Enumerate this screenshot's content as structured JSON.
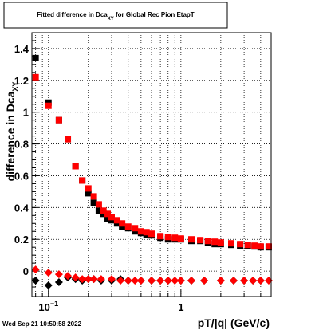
{
  "footer_timestamp": "Wed Sep 21 10:50:58 2022",
  "colors": {
    "series_red": "#ff0000",
    "series_black": "#000000",
    "background": "#ffffff"
  },
  "chart_data": {
    "type": "scatter",
    "title": "Fitted difference in Dca_XY for Global Rec Pion EtapT",
    "title_main": "Fitted difference in Dca",
    "title_sub": "XY",
    "title_tail": " for Global Rec Pion EtapT",
    "xlabel": "pT/|q| (GeV/c)",
    "ylabel_main": "difference in Dca",
    "ylabel_sub": "XY",
    "x_scale": "log",
    "xlim": [
      0.075,
      4.8
    ],
    "ylim": [
      -0.16,
      1.5
    ],
    "grid": true,
    "x_tick_labels": [
      {
        "value": 0.1,
        "label": "10",
        "exp": "−1"
      },
      {
        "value": 1,
        "label": "1",
        "exp": ""
      }
    ],
    "y_ticks": [
      {
        "value": 0,
        "label": "0"
      },
      {
        "value": 0.2,
        "label": "0.2"
      },
      {
        "value": 0.4,
        "label": "0.4"
      },
      {
        "value": 0.6,
        "label": "0.6"
      },
      {
        "value": 0.8,
        "label": "0.8"
      },
      {
        "value": 1,
        "label": "1"
      },
      {
        "value": 1.2,
        "label": "1.2"
      },
      {
        "value": 1.4,
        "label": "1.4"
      }
    ],
    "series": [
      {
        "marker": "square",
        "color": "#000000",
        "x": [
          0.08,
          0.1,
          0.12,
          0.14,
          0.16,
          0.18,
          0.2,
          0.22,
          0.24,
          0.26,
          0.28,
          0.3,
          0.33,
          0.36,
          0.4,
          0.45,
          0.5,
          0.55,
          0.6,
          0.7,
          0.8,
          0.9,
          1.0,
          1.2,
          1.4,
          1.6,
          1.8,
          2.0,
          2.4,
          2.8,
          3.2,
          3.6,
          4.0,
          4.6
        ],
        "y": [
          1.34,
          1.06,
          0.95,
          0.83,
          0.66,
          0.57,
          0.49,
          0.43,
          0.38,
          0.36,
          0.33,
          0.32,
          0.3,
          0.28,
          0.27,
          0.25,
          0.24,
          0.23,
          0.225,
          0.21,
          0.2,
          0.2,
          0.2,
          0.19,
          0.19,
          0.18,
          0.17,
          0.17,
          0.165,
          0.16,
          0.16,
          0.155,
          0.15,
          0.15
        ]
      },
      {
        "marker": "square",
        "color": "#ff0000",
        "x": [
          0.08,
          0.1,
          0.12,
          0.14,
          0.16,
          0.18,
          0.2,
          0.22,
          0.24,
          0.26,
          0.28,
          0.3,
          0.33,
          0.36,
          0.4,
          0.45,
          0.5,
          0.55,
          0.6,
          0.7,
          0.8,
          0.9,
          1.0,
          1.2,
          1.4,
          1.6,
          1.8,
          2.0,
          2.4,
          2.8,
          3.2,
          3.6,
          4.0,
          4.6
        ],
        "y": [
          1.22,
          1.04,
          0.95,
          0.83,
          0.66,
          0.57,
          0.52,
          0.47,
          0.42,
          0.38,
          0.36,
          0.34,
          0.32,
          0.3,
          0.28,
          0.27,
          0.25,
          0.245,
          0.235,
          0.22,
          0.215,
          0.21,
          0.205,
          0.2,
          0.195,
          0.19,
          0.185,
          0.18,
          0.175,
          0.17,
          0.165,
          0.16,
          0.155,
          0.155
        ]
      },
      {
        "marker": "diamond",
        "color": "#000000",
        "x": [
          0.08,
          0.1,
          0.12,
          0.14,
          0.16,
          0.18,
          0.2,
          0.22,
          0.25,
          0.3,
          0.35,
          0.4,
          0.5,
          0.6,
          0.7,
          0.8,
          1.0,
          1.2,
          1.5,
          2.0,
          2.5,
          3.0,
          3.5,
          4.0
        ],
        "y": [
          -0.06,
          -0.09,
          -0.07,
          -0.04,
          -0.05,
          -0.06,
          -0.05,
          -0.05,
          -0.06,
          -0.06,
          -0.05,
          -0.06,
          -0.06,
          -0.06,
          -0.06,
          -0.06,
          -0.06,
          -0.06,
          -0.06,
          -0.06,
          -0.06,
          -0.06,
          -0.06,
          -0.06
        ]
      },
      {
        "marker": "diamond",
        "color": "#ff0000",
        "x": [
          0.08,
          0.1,
          0.12,
          0.14,
          0.16,
          0.18,
          0.2,
          0.22,
          0.25,
          0.3,
          0.35,
          0.4,
          0.45,
          0.5,
          0.6,
          0.7,
          0.8,
          0.9,
          1.0,
          1.2,
          1.5,
          2.0,
          2.5,
          3.0,
          3.5,
          4.0,
          4.6
        ],
        "y": [
          0.01,
          -0.01,
          -0.02,
          -0.03,
          -0.04,
          -0.05,
          -0.05,
          -0.05,
          -0.05,
          -0.05,
          -0.06,
          -0.06,
          -0.06,
          -0.06,
          -0.06,
          -0.06,
          -0.06,
          -0.06,
          -0.06,
          -0.06,
          -0.06,
          -0.06,
          -0.06,
          -0.06,
          -0.06,
          -0.06,
          -0.06
        ]
      }
    ]
  }
}
